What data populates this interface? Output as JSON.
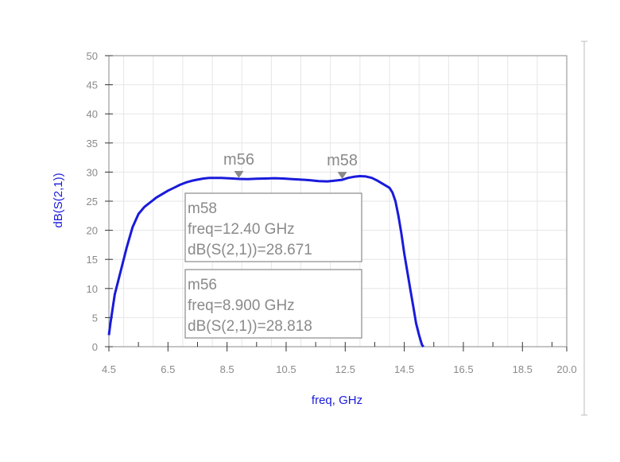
{
  "chart_data": {
    "type": "line",
    "xlabel": "freq, GHz",
    "ylabel": "dB(S(2,1))",
    "xlim": [
      4.5,
      20.0
    ],
    "ylim": [
      0,
      50
    ],
    "x_ticks": [
      4.5,
      6.5,
      8.5,
      10.5,
      12.5,
      14.5,
      16.5,
      18.5,
      20.0
    ],
    "x_tick_labels": [
      "4.5",
      "6.5",
      "8.5",
      "10.5",
      "12.5",
      "14.5",
      "16.5",
      "18.5",
      "20.0"
    ],
    "y_ticks": [
      0,
      5,
      10,
      15,
      20,
      25,
      30,
      35,
      40,
      45,
      50
    ],
    "y_tick_labels": [
      "0",
      "5",
      "10",
      "15",
      "20",
      "25",
      "30",
      "35",
      "40",
      "45",
      "50"
    ],
    "grid": true,
    "series": [
      {
        "color": "#1a1adc",
        "x": [
          4.5,
          4.55,
          4.7,
          4.9,
          5.1,
          5.3,
          5.5,
          5.7,
          5.9,
          6.1,
          6.3,
          6.5,
          6.7,
          6.9,
          7.1,
          7.3,
          7.5,
          7.7,
          7.9,
          8.1,
          8.3,
          8.5,
          8.7,
          8.9,
          9.2,
          9.5,
          9.8,
          10.1,
          10.4,
          10.7,
          11.0,
          11.3,
          11.6,
          11.9,
          12.1,
          12.4,
          12.6,
          12.8,
          13.0,
          13.2,
          13.4,
          13.6,
          13.8,
          14.0,
          14.1,
          14.2,
          14.3,
          14.4,
          14.5,
          14.6,
          14.7,
          14.8,
          14.9,
          15.0,
          15.1,
          15.15
        ],
        "y": [
          2.0,
          4.0,
          9.0,
          13.0,
          17.0,
          20.5,
          22.8,
          24.0,
          24.8,
          25.6,
          26.2,
          26.8,
          27.3,
          27.8,
          28.2,
          28.5,
          28.7,
          28.9,
          29.0,
          29.0,
          29.0,
          28.95,
          28.9,
          28.82,
          28.8,
          28.85,
          28.9,
          28.95,
          28.9,
          28.8,
          28.7,
          28.6,
          28.45,
          28.4,
          28.5,
          28.67,
          29.0,
          29.2,
          29.3,
          29.25,
          29.0,
          28.5,
          27.9,
          27.3,
          26.5,
          25.0,
          22.5,
          19.5,
          16.0,
          13.0,
          10.0,
          7.0,
          4.0,
          2.0,
          0.3,
          0.0
        ]
      }
    ],
    "markers": [
      {
        "id": "m56",
        "x": 8.9,
        "y": 28.818,
        "label": "m56",
        "readout": [
          "m56",
          "freq=8.900 GHz",
          "dB(S(2,1))=28.818"
        ]
      },
      {
        "id": "m58",
        "x": 12.4,
        "y": 28.671,
        "label": "m58",
        "readout": [
          "m58",
          "freq=12.40 GHz",
          "dB(S(2,1))=28.671"
        ]
      }
    ]
  }
}
